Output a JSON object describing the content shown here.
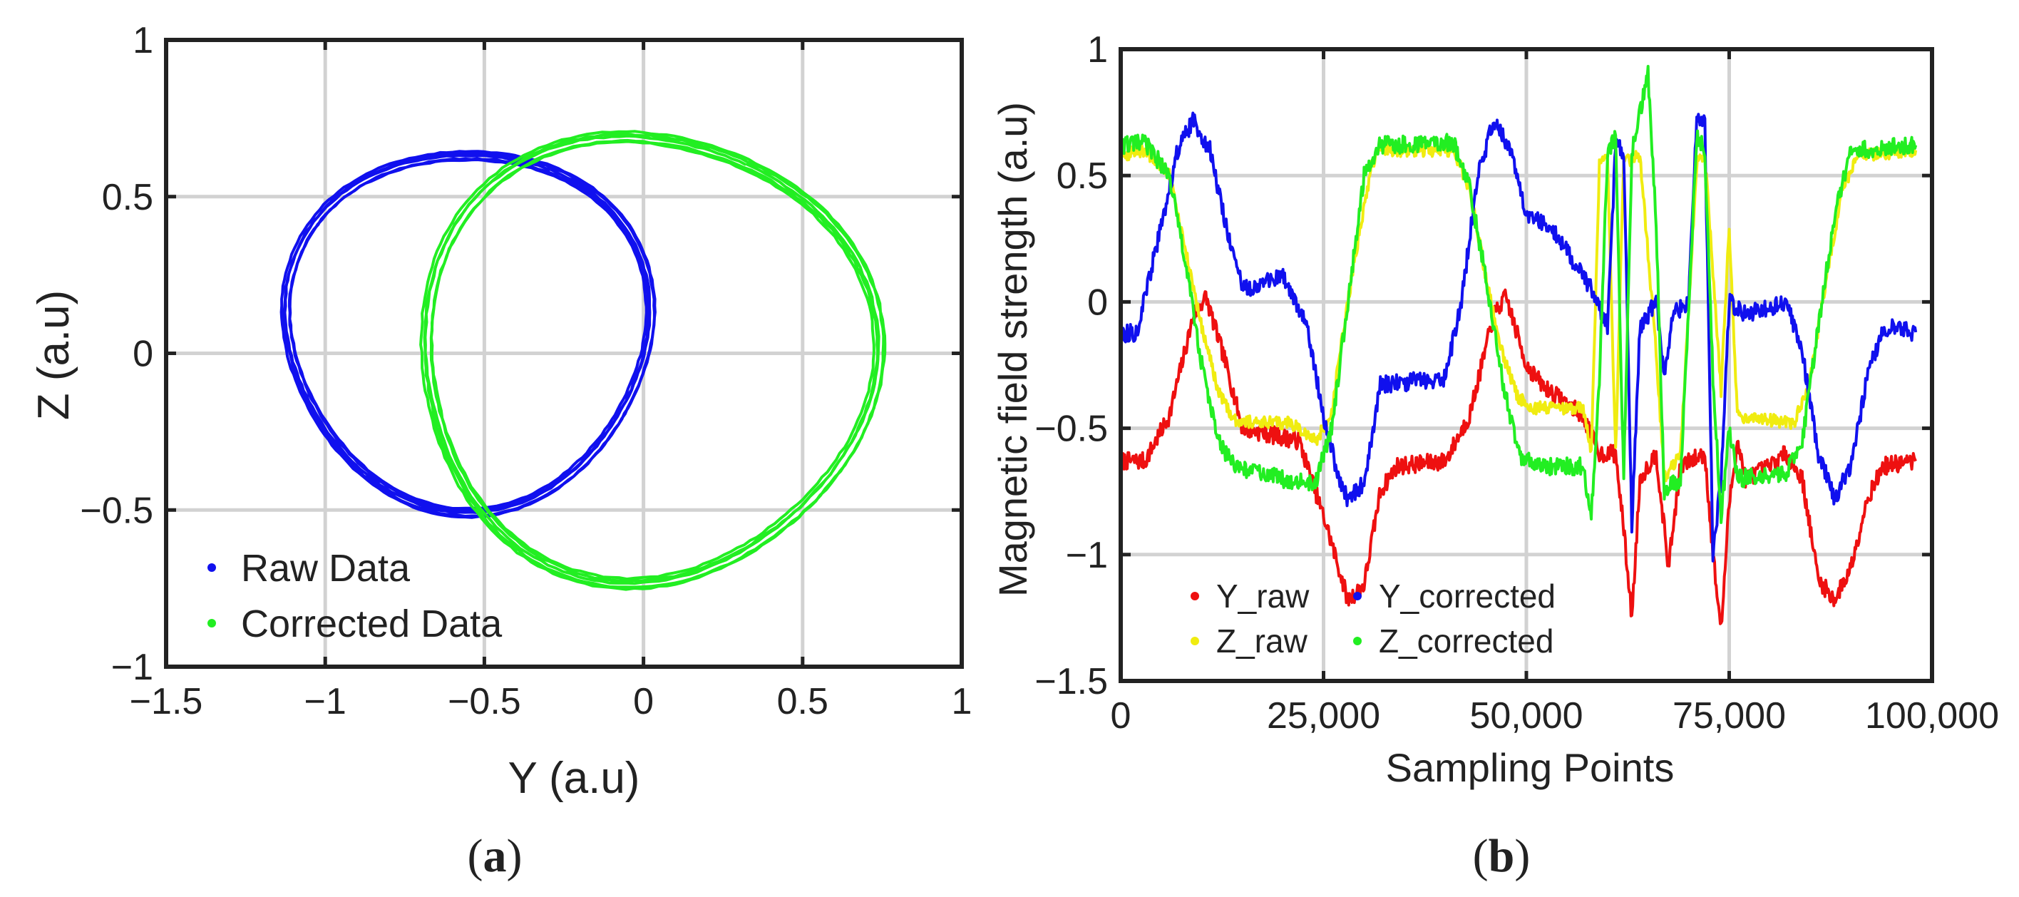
{
  "chart_data": [
    {
      "type": "scatter",
      "panel_label": "a",
      "xlabel": "Y (a.u)",
      "ylabel": "Z (a.u)",
      "xlim": [
        -1.5,
        1
      ],
      "ylim": [
        -1,
        1
      ],
      "xticks": [
        -1.5,
        -1,
        -0.5,
        0,
        0.5,
        1
      ],
      "yticks": [
        -1,
        -0.5,
        0,
        0.5,
        1
      ],
      "xtick_labels": [
        "−1.5",
        "−1",
        "−0.5",
        "0",
        "0.5",
        "1"
      ],
      "ytick_labels": [
        "−1",
        "−0.5",
        "0",
        "0.5",
        "1"
      ],
      "grid": true,
      "legend_position": "bottom-left",
      "series": [
        {
          "name": "Raw Data",
          "color": "#1010ee",
          "shape": "loop",
          "center": [
            -0.55,
            0.08
          ],
          "rx": 0.57,
          "ry": 0.57,
          "loops": 5
        },
        {
          "name": "Corrected Data",
          "color": "#22ee22",
          "shape": "loop",
          "center": [
            0.01,
            -0.01
          ],
          "rx": 0.71,
          "ry": 0.71,
          "loops": 5
        }
      ]
    },
    {
      "type": "line",
      "panel_label": "b",
      "xlabel": "Sampling Points",
      "ylabel": "Magnetic field strength (a.u)",
      "xlim": [
        0,
        100000
      ],
      "ylim": [
        -1.5,
        1
      ],
      "xticks": [
        0,
        25000,
        50000,
        75000,
        100000
      ],
      "yticks": [
        -1.5,
        -1,
        -0.5,
        0,
        0.5,
        1
      ],
      "xtick_labels": [
        "0",
        "25,000",
        "50,000",
        "75,000",
        "100,000"
      ],
      "ytick_labels": [
        "−1.5",
        "−1",
        "−0.5",
        "0",
        "0.5",
        "1"
      ],
      "grid": true,
      "legend_position": "bottom-left",
      "series": [
        {
          "name": "Y_raw",
          "color": "#ee1010",
          "noise": 0.035,
          "points": [
            [
              0,
              -0.63
            ],
            [
              3000,
              -0.63
            ],
            [
              6000,
              -0.45
            ],
            [
              9000,
              -0.05
            ],
            [
              10500,
              0.02
            ],
            [
              13000,
              -0.25
            ],
            [
              15000,
              -0.5
            ],
            [
              22000,
              -0.55
            ],
            [
              25500,
              -0.9
            ],
            [
              28000,
              -1.18
            ],
            [
              30000,
              -1.12
            ],
            [
              32000,
              -0.75
            ],
            [
              34000,
              -0.65
            ],
            [
              40000,
              -0.63
            ],
            [
              43000,
              -0.45
            ],
            [
              46000,
              -0.05
            ],
            [
              47500,
              0.02
            ],
            [
              50000,
              -0.25
            ],
            [
              52000,
              -0.33
            ],
            [
              57000,
              -0.45
            ],
            [
              59000,
              -0.6
            ],
            [
              61000,
              -0.6
            ],
            [
              62000,
              -0.9
            ],
            [
              63000,
              -1.25
            ],
            [
              64000,
              -0.7
            ],
            [
              66000,
              -0.6
            ],
            [
              67500,
              -1.05
            ],
            [
              69000,
              -0.65
            ],
            [
              72000,
              -0.6
            ],
            [
              73000,
              -1.0
            ],
            [
              74000,
              -1.3
            ],
            [
              75000,
              -0.8
            ],
            [
              76000,
              -0.55
            ],
            [
              77000,
              -0.7
            ],
            [
              80000,
              -0.65
            ],
            [
              82000,
              -0.6
            ],
            [
              84000,
              -0.7
            ],
            [
              86000,
              -1.1
            ],
            [
              88000,
              -1.18
            ],
            [
              90000,
              -1.05
            ],
            [
              92000,
              -0.78
            ],
            [
              94000,
              -0.65
            ],
            [
              98000,
              -0.63
            ]
          ]
        },
        {
          "name": "Z_raw",
          "color": "#f0ec10",
          "noise": 0.025,
          "points": [
            [
              0,
              0.58
            ],
            [
              3000,
              0.6
            ],
            [
              6000,
              0.5
            ],
            [
              8000,
              0.2
            ],
            [
              10000,
              -0.1
            ],
            [
              12000,
              -0.35
            ],
            [
              14000,
              -0.47
            ],
            [
              21000,
              -0.48
            ],
            [
              24000,
              -0.55
            ],
            [
              26000,
              -0.45
            ],
            [
              27000,
              -0.2
            ],
            [
              29000,
              0.2
            ],
            [
              31000,
              0.55
            ],
            [
              32000,
              0.6
            ],
            [
              41000,
              0.6
            ],
            [
              43000,
              0.45
            ],
            [
              45000,
              0.1
            ],
            [
              47000,
              -0.2
            ],
            [
              49000,
              -0.38
            ],
            [
              51000,
              -0.42
            ],
            [
              57000,
              -0.42
            ],
            [
              58000,
              -0.6
            ],
            [
              59000,
              0.55
            ],
            [
              60000,
              0.58
            ],
            [
              61000,
              -0.6
            ],
            [
              62000,
              0.55
            ],
            [
              64000,
              0.58
            ],
            [
              66000,
              -0.2
            ],
            [
              67000,
              -0.7
            ],
            [
              69000,
              -0.6
            ],
            [
              71000,
              0.55
            ],
            [
              72000,
              0.58
            ],
            [
              74000,
              -0.35
            ],
            [
              75000,
              0.3
            ],
            [
              76000,
              -0.45
            ],
            [
              83000,
              -0.48
            ],
            [
              85000,
              -0.3
            ],
            [
              87000,
              0.1
            ],
            [
              89000,
              0.45
            ],
            [
              91000,
              0.58
            ],
            [
              98000,
              0.6
            ]
          ]
        },
        {
          "name": "Y_corrected",
          "color": "#1010ee",
          "noise": 0.035,
          "points": [
            [
              0,
              -0.13
            ],
            [
              2000,
              -0.12
            ],
            [
              5000,
              0.3
            ],
            [
              7000,
              0.6
            ],
            [
              9000,
              0.72
            ],
            [
              11000,
              0.6
            ],
            [
              13000,
              0.3
            ],
            [
              15000,
              0.05
            ],
            [
              20000,
              0.1
            ],
            [
              23000,
              -0.1
            ],
            [
              25000,
              -0.45
            ],
            [
              27000,
              -0.72
            ],
            [
              28000,
              -0.78
            ],
            [
              30000,
              -0.72
            ],
            [
              32000,
              -0.33
            ],
            [
              40000,
              -0.3
            ],
            [
              42000,
              0.0
            ],
            [
              44000,
              0.5
            ],
            [
              46000,
              0.72
            ],
            [
              48000,
              0.6
            ],
            [
              50000,
              0.35
            ],
            [
              53000,
              0.3
            ],
            [
              56000,
              0.15
            ],
            [
              58000,
              0.05
            ],
            [
              60000,
              -0.1
            ],
            [
              61000,
              0.62
            ],
            [
              62000,
              0.6
            ],
            [
              63000,
              -0.88
            ],
            [
              64000,
              -0.1
            ],
            [
              66000,
              0.0
            ],
            [
              67000,
              -0.3
            ],
            [
              68000,
              -0.05
            ],
            [
              70000,
              0.0
            ],
            [
              71000,
              0.72
            ],
            [
              72000,
              0.7
            ],
            [
              73000,
              -1.0
            ],
            [
              74000,
              -0.7
            ],
            [
              75000,
              0.0
            ],
            [
              77000,
              -0.05
            ],
            [
              82000,
              0.0
            ],
            [
              84000,
              -0.2
            ],
            [
              86000,
              -0.6
            ],
            [
              88000,
              -0.78
            ],
            [
              90000,
              -0.65
            ],
            [
              92000,
              -0.3
            ],
            [
              94000,
              -0.1
            ],
            [
              98000,
              -0.12
            ]
          ]
        },
        {
          "name": "Z_corrected",
          "color": "#22ee22",
          "noise": 0.035,
          "points": [
            [
              0,
              0.62
            ],
            [
              3000,
              0.63
            ],
            [
              6000,
              0.5
            ],
            [
              8000,
              0.15
            ],
            [
              10000,
              -0.25
            ],
            [
              12000,
              -0.55
            ],
            [
              14000,
              -0.65
            ],
            [
              20000,
              -0.7
            ],
            [
              24000,
              -0.72
            ],
            [
              26000,
              -0.5
            ],
            [
              28000,
              0.0
            ],
            [
              30000,
              0.5
            ],
            [
              32000,
              0.62
            ],
            [
              41000,
              0.63
            ],
            [
              43000,
              0.45
            ],
            [
              45000,
              0.1
            ],
            [
              47000,
              -0.3
            ],
            [
              49000,
              -0.6
            ],
            [
              51000,
              -0.65
            ],
            [
              57000,
              -0.65
            ],
            [
              58000,
              -0.85
            ],
            [
              59000,
              -0.3
            ],
            [
              60000,
              0.6
            ],
            [
              61000,
              0.65
            ],
            [
              62000,
              -0.7
            ],
            [
              63000,
              0.6
            ],
            [
              65000,
              0.9
            ],
            [
              66000,
              0.3
            ],
            [
              67000,
              -0.75
            ],
            [
              69000,
              -0.7
            ],
            [
              71000,
              0.65
            ],
            [
              72000,
              0.6
            ],
            [
              73000,
              -0.3
            ],
            [
              74000,
              -0.85
            ],
            [
              75000,
              -0.5
            ],
            [
              76000,
              -0.7
            ],
            [
              82000,
              -0.68
            ],
            [
              84000,
              -0.55
            ],
            [
              86000,
              -0.1
            ],
            [
              88000,
              0.35
            ],
            [
              90000,
              0.6
            ],
            [
              98000,
              0.62
            ]
          ]
        }
      ]
    }
  ]
}
